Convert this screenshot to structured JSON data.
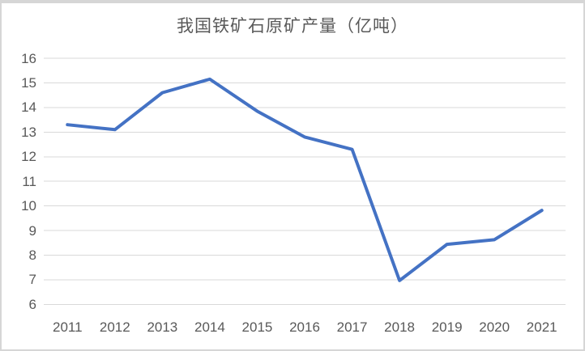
{
  "chart_data": {
    "type": "line",
    "title": "我国铁矿石原矿产量（亿吨）",
    "categories": [
      "2011",
      "2012",
      "2013",
      "2014",
      "2015",
      "2016",
      "2017",
      "2018",
      "2019",
      "2020",
      "2021"
    ],
    "values": [
      13.3,
      13.1,
      14.6,
      15.15,
      13.85,
      12.8,
      12.3,
      6.97,
      8.44,
      8.63,
      9.82
    ],
    "xlabel": "",
    "ylabel": "",
    "ylim": [
      6,
      16
    ],
    "y_ticks": [
      16,
      15,
      14,
      13,
      12,
      11,
      10,
      9,
      8,
      7,
      6
    ],
    "grid": "horizontal",
    "legend": "none",
    "line_color": "#4472C4",
    "gridline_color": "#D9D9D9",
    "text_color": "#595959",
    "border_color": "#D6D6D6",
    "background": "#FFFFFF"
  }
}
